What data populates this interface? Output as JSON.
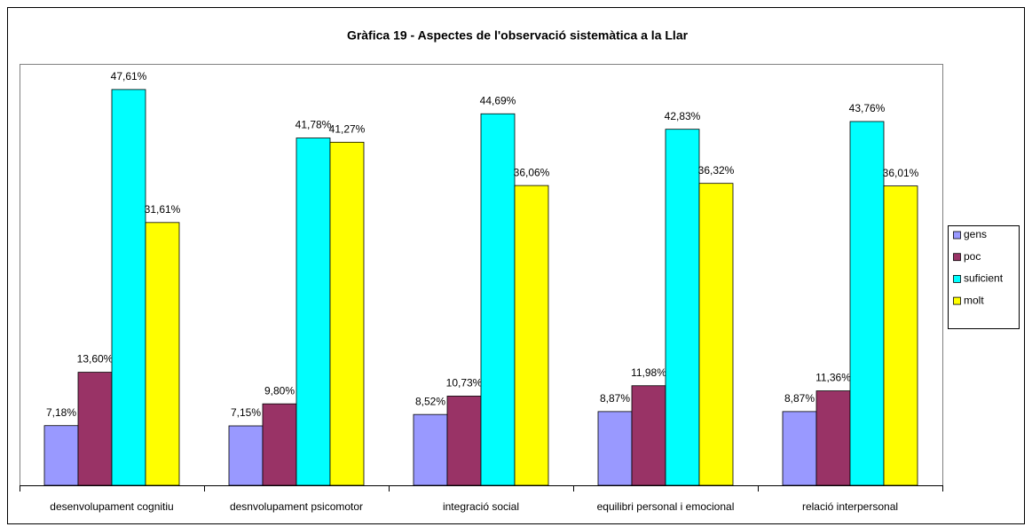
{
  "chart_data": {
    "type": "bar",
    "title": "Gràfica 19 - Aspectes de l'observació sistemàtica a la Llar",
    "categories": [
      "desenvolupament cognitiu",
      "desnvolupament psicomotor",
      "integració social",
      "equilibri personal i emocional",
      "relació interpersonal"
    ],
    "series": [
      {
        "name": "gens",
        "color": "#9999ff",
        "values": [
          7.18,
          7.15,
          8.52,
          8.87,
          8.87
        ],
        "value_labels": [
          "7,18%",
          "7,15%",
          "8,52%",
          "8,87%",
          "8,87%"
        ]
      },
      {
        "name": "poc",
        "color": "#993366",
        "values": [
          13.6,
          9.8,
          10.73,
          11.98,
          11.36
        ],
        "value_labels": [
          "13,60%",
          "9,80%",
          "10,73%",
          "11,98%",
          "11,36%"
        ]
      },
      {
        "name": "suficient",
        "color": "#00ffff",
        "values": [
          47.61,
          41.78,
          44.69,
          42.83,
          43.76
        ],
        "value_labels": [
          "47,61%",
          "41,78%",
          "44,69%",
          "42,83%",
          "43,76%"
        ]
      },
      {
        "name": "molt",
        "color": "#ffff00",
        "values": [
          31.61,
          41.27,
          36.06,
          36.32,
          36.01
        ],
        "value_labels": [
          "31,61%",
          "41,27%",
          "36,06%",
          "36,32%",
          "36,01%"
        ]
      }
    ],
    "ylim": [
      0,
      50
    ],
    "legend": "right"
  }
}
